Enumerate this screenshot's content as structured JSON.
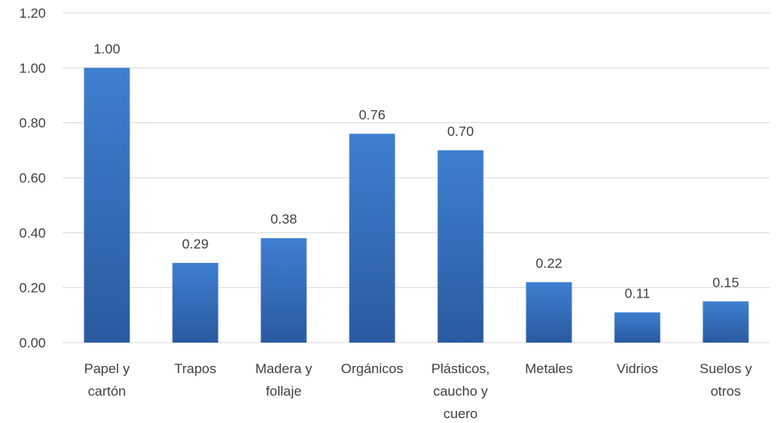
{
  "chart_data": {
    "type": "bar",
    "title": "",
    "xlabel": "",
    "ylabel": "",
    "categories": [
      "Papel y cartón",
      "Trapos",
      "Madera y follaje",
      "Orgánicos",
      "Plásticos, caucho y cuero",
      "Metales",
      "Vidrios",
      "Suelos y otros"
    ],
    "category_lines": [
      [
        "Papel y",
        "cartón"
      ],
      [
        "Trapos"
      ],
      [
        "Madera y",
        "follaje"
      ],
      [
        "Orgánicos"
      ],
      [
        "Plásticos,",
        "caucho y",
        "cuero"
      ],
      [
        "Metales"
      ],
      [
        "Vidrios"
      ],
      [
        "Suelos y",
        "otros"
      ]
    ],
    "values": [
      1.0,
      0.29,
      0.38,
      0.76,
      0.7,
      0.22,
      0.11,
      0.15
    ],
    "data_labels": [
      "1.00",
      "0.29",
      "0.38",
      "0.76",
      "0.70",
      "0.22",
      "0.11",
      "0.15"
    ],
    "yticks": [
      "0.00",
      "0.20",
      "0.40",
      "0.60",
      "0.80",
      "1.00",
      "1.20"
    ],
    "ylim": [
      0,
      1.2
    ],
    "grid": true,
    "legend": "none",
    "colors": {
      "bar_top": "#3e7fd0",
      "bar_bottom": "#2a5aa0",
      "grid": "#d9d9d9",
      "text": "#404040"
    }
  }
}
